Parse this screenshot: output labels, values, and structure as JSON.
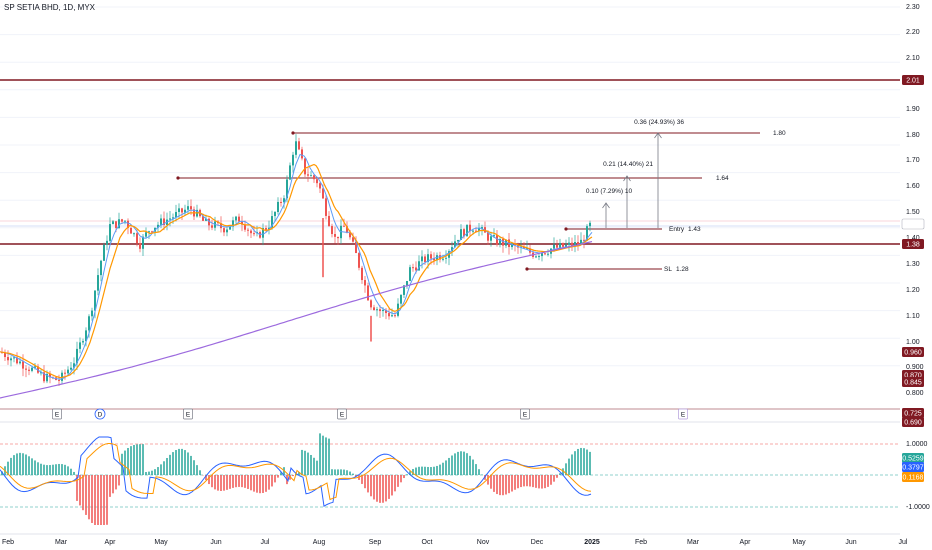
{
  "header": {
    "title": "SP SETIA BHD, 1D, MYX"
  },
  "price_axis": {
    "ticks": [
      "2.30",
      "2.20",
      "2.10",
      "1.90",
      "1.80",
      "1.70",
      "1.60",
      "1.50",
      "1.40",
      "1.30",
      "1.20",
      "1.10",
      "1.00",
      "0.900",
      "0.800"
    ],
    "badges": [
      {
        "label": "2.01",
        "color": "#801922"
      },
      {
        "label": "1.46",
        "color": "#ffffff"
      },
      {
        "label": "1.38",
        "color": "#801922"
      },
      {
        "label": "0.960",
        "color": "#801922"
      },
      {
        "label": "0.870",
        "color": "#801922"
      },
      {
        "label": "0.845",
        "color": "#801922"
      },
      {
        "label": "0.725",
        "color": "#801922"
      },
      {
        "label": "0.690",
        "color": "#801922"
      }
    ]
  },
  "osc_axis": {
    "ticks": [
      "1.0000",
      "-1.0000"
    ],
    "badges": [
      {
        "label": "0.5259",
        "color": "#26a69a"
      },
      {
        "label": "0.3797",
        "color": "#2962ff"
      },
      {
        "label": "0.1168",
        "color": "#ff9800"
      }
    ]
  },
  "time_axis": {
    "labels": [
      "Feb",
      "Mar",
      "Apr",
      "May",
      "Jun",
      "Jul",
      "Aug",
      "Sep",
      "Oct",
      "Nov",
      "Dec",
      "2025",
      "Feb",
      "Mar",
      "Apr",
      "May",
      "Jun",
      "Jul"
    ]
  },
  "events": [
    "E",
    "D",
    "E",
    "E",
    "E",
    "E"
  ],
  "annotations": {
    "target1": "0.10 (7.29%) 10",
    "target2": "0.21 (14.40%) 21",
    "target3": "0.36 (24.93%) 36",
    "entry_label": "Entry",
    "entry_value": "1.43",
    "sl_label": "SL",
    "sl_value": "1.28",
    "level_164": "1.64",
    "level_180": "1.80"
  },
  "colors": {
    "up": "#26a69a",
    "down": "#ef5350",
    "ema_fast": "#5b9cf6",
    "ema_slow": "#ff9800",
    "ma_long": "#9c6ade",
    "level": "#801922"
  },
  "chart_data": {
    "type": "line",
    "series": [
      {
        "values": [
          0.96,
          0.92,
          0.87,
          0.85,
          0.9,
          1.1,
          1.35,
          1.48,
          1.45,
          1.4,
          1.5,
          1.44,
          1.5,
          1.42,
          1.6,
          1.8,
          1.7,
          1.6,
          1.5,
          1.2,
          1.35,
          1.1,
          1.05,
          1.15,
          1.3,
          1.34,
          1.36,
          1.45,
          1.42,
          1.36,
          1.3,
          1.33,
          1.35,
          1.4,
          1.46
        ]
      }
    ],
    "levels": [
      2.01,
      1.8,
      1.64,
      1.43,
      1.38,
      1.28
    ],
    "ylim": [
      0.69,
      2.3
    ]
  }
}
